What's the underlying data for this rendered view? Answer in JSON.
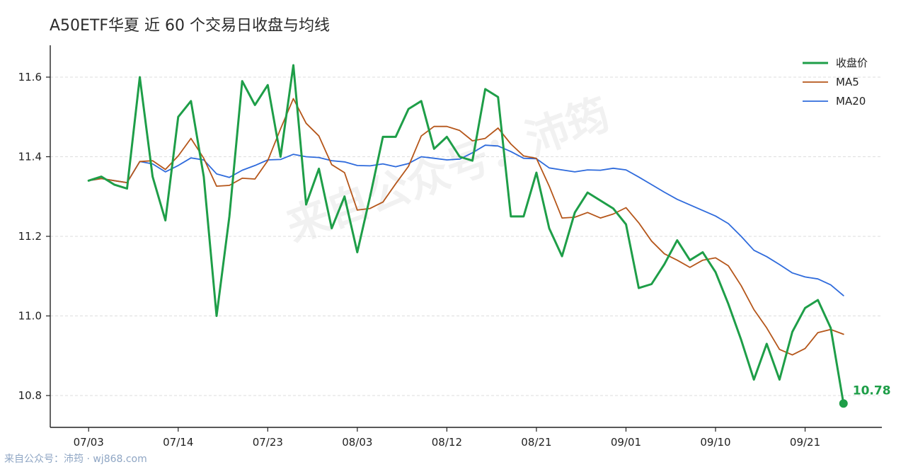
{
  "title": "A50ETF华夏 近 60 个交易日收盘与均线",
  "watermark": "来自公众号：沛筠",
  "footer": "来自公众号：沛筠 · wj868.com",
  "colors": {
    "close": "#1e9e48",
    "ma5": "#b5561a",
    "ma20": "#2f6bdc",
    "grid": "#dddddd",
    "axis": "#222222"
  },
  "chart_data": {
    "type": "line",
    "title": "A50ETF华夏 近 60 个交易日收盘与均线",
    "x_ticks": [
      "07/03",
      "07/14",
      "07/23",
      "08/03",
      "08/12",
      "08/21",
      "09/01",
      "09/10",
      "09/21"
    ],
    "x_tick_positions": [
      0,
      7,
      14,
      21,
      28,
      35,
      42,
      49,
      56
    ],
    "x_range": [
      -3,
      62
    ],
    "ylim": [
      10.72,
      11.68
    ],
    "y_ticks": [
      10.8,
      11.0,
      11.2,
      11.4,
      11.6
    ],
    "grid": "horizontal dashed",
    "legend_position": "top-right",
    "end_label": "10.78",
    "series": [
      {
        "name": "收盘价",
        "values": [
          11.34,
          11.35,
          11.33,
          11.32,
          11.6,
          11.35,
          11.24,
          11.5,
          11.54,
          11.35,
          11.0,
          11.25,
          11.59,
          11.53,
          11.58,
          11.4,
          11.63,
          11.28,
          11.37,
          11.22,
          11.3,
          11.16,
          11.3,
          11.45,
          11.45,
          11.52,
          11.54,
          11.42,
          11.45,
          11.4,
          11.39,
          11.57,
          11.55,
          11.25,
          11.25,
          11.36,
          11.22,
          11.15,
          11.26,
          11.31,
          11.29,
          11.27,
          11.23,
          11.07,
          11.08,
          11.13,
          11.19,
          11.14,
          11.16,
          11.11,
          11.03,
          10.94,
          10.84,
          10.93,
          10.84,
          10.96,
          11.02,
          11.04,
          10.97,
          10.78
        ]
      },
      {
        "name": "MA5",
        "values": [
          11.34,
          11.345,
          11.34,
          11.335,
          11.388,
          11.39,
          11.368,
          11.402,
          11.446,
          11.396,
          11.326,
          11.328,
          11.346,
          11.344,
          11.39,
          11.47,
          11.546,
          11.484,
          11.452,
          11.38,
          11.36,
          11.266,
          11.27,
          11.286,
          11.332,
          11.376,
          11.452,
          11.476,
          11.476,
          11.466,
          11.44,
          11.446,
          11.472,
          11.432,
          11.402,
          11.396,
          11.326,
          11.246,
          11.248,
          11.26,
          11.246,
          11.256,
          11.272,
          11.234,
          11.188,
          11.156,
          11.14,
          11.122,
          11.14,
          11.146,
          11.126,
          11.076,
          11.016,
          10.97,
          10.916,
          10.902,
          10.918,
          10.958,
          10.966,
          10.954
        ]
      },
      {
        "name": "MA20",
        "values": [
          11.34,
          11.345,
          11.34,
          11.335,
          11.388,
          11.382,
          11.362,
          11.378,
          11.397,
          11.392,
          11.357,
          11.348,
          11.366,
          11.378,
          11.392,
          11.393,
          11.406,
          11.4,
          11.398,
          11.39,
          11.387,
          11.378,
          11.377,
          11.382,
          11.375,
          11.383,
          11.4,
          11.396,
          11.392,
          11.394,
          11.41,
          11.429,
          11.427,
          11.413,
          11.396,
          11.395,
          11.372,
          11.367,
          11.362,
          11.367,
          11.366,
          11.371,
          11.367,
          11.349,
          11.33,
          11.311,
          11.293,
          11.279,
          11.265,
          11.251,
          11.232,
          11.2,
          11.165,
          11.149,
          11.129,
          11.108,
          11.098,
          11.093,
          11.078,
          11.051
        ]
      }
    ]
  }
}
